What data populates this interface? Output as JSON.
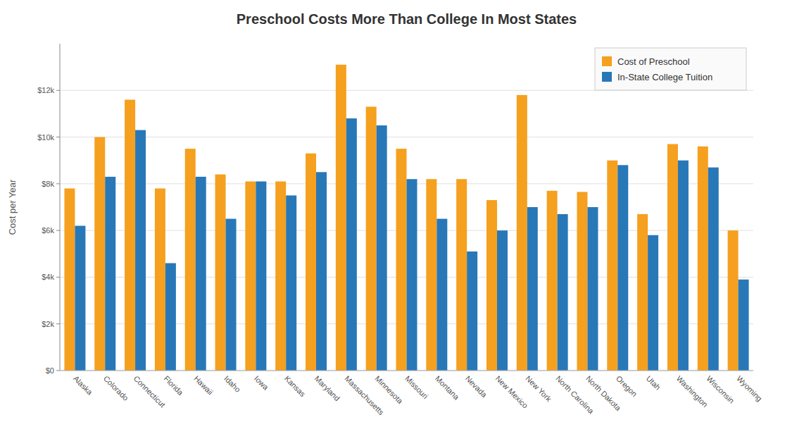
{
  "chart_data": {
    "type": "bar",
    "title": "Preschool Costs More Than College In Most States",
    "y_label": "Cost per Year",
    "categories": [
      "Alaska",
      "Colorado",
      "Connecticut",
      "Florida",
      "Hawaii",
      "Idaho",
      "Iowa",
      "Kansas",
      "Maryland",
      "Massachusetts",
      "Minnesota",
      "Missouri",
      "Montana",
      "Nevada",
      "New Mexico",
      "New York",
      "North Carolina",
      "North Dakota",
      "Oregon",
      "Utah",
      "Washington",
      "Wisconsin",
      "Wyoming"
    ],
    "series": [
      {
        "name": "Cost of Preschool",
        "color": "#F5A01E",
        "values": [
          7800,
          10000,
          11600,
          7800,
          9500,
          8400,
          8100,
          8100,
          9300,
          13100,
          11300,
          9500,
          8200,
          8200,
          7300,
          11800,
          7700,
          7650,
          9000,
          6700,
          9700,
          9600,
          6000
        ]
      },
      {
        "name": "In-State College Tuition",
        "color": "#2878B8",
        "values": [
          6200,
          8300,
          10300,
          4600,
          8300,
          6500,
          8100,
          7500,
          8500,
          10800,
          10500,
          8200,
          6500,
          5100,
          6000,
          7000,
          6700,
          7000,
          8800,
          5800,
          9000,
          8700,
          3900
        ]
      }
    ],
    "ylim": [
      0,
      14000
    ],
    "yticks": [
      {
        "value": 0,
        "label": "$0"
      },
      {
        "value": 2000,
        "label": "$2k"
      },
      {
        "value": 4000,
        "label": "$4k"
      },
      {
        "value": 6000,
        "label": "$6k"
      },
      {
        "value": 8000,
        "label": "$8k"
      },
      {
        "value": 10000,
        "label": "$10k"
      },
      {
        "value": 12000,
        "label": "$12k"
      }
    ],
    "grid": true,
    "legend": "upper-right"
  }
}
